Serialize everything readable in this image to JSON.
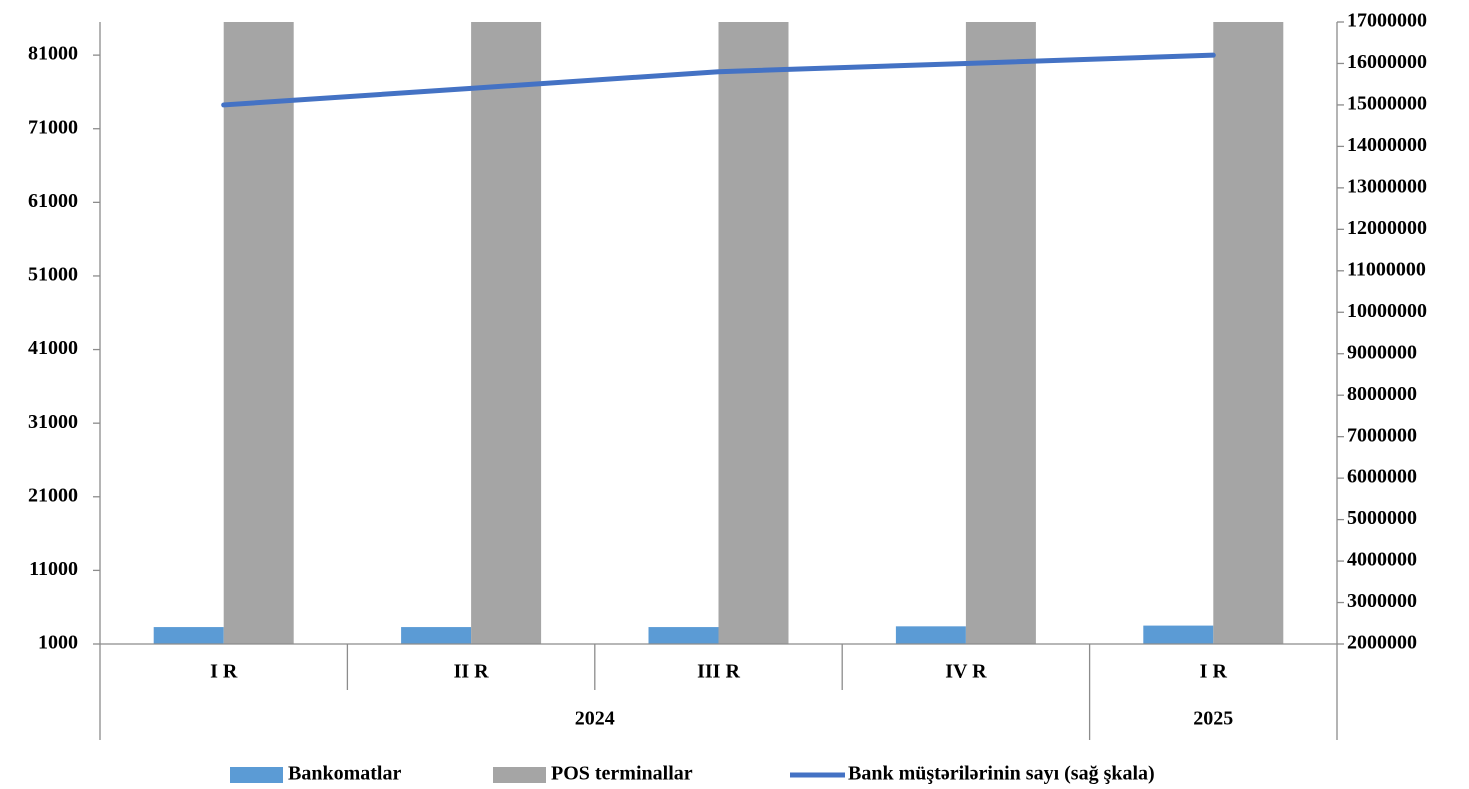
{
  "chart_data": {
    "type": "bar_line",
    "categories": [
      "I R",
      "II R",
      "III R",
      "IV R",
      "I R"
    ],
    "category_groups": [
      {
        "name": "2024",
        "count": 4
      },
      {
        "name": "2025",
        "count": 1
      }
    ],
    "series": [
      {
        "name": "Bankomatlar",
        "type": "bar",
        "color": "#5b9bd5",
        "values": [
          3300,
          3300,
          3300,
          3400,
          3500
        ]
      },
      {
        "name": "POS terminallar",
        "type": "bar",
        "color": "#a5a5a5",
        "values": [
          85500,
          85500,
          85500,
          85500,
          85500
        ]
      },
      {
        "name": "Bank müştərilərinin sayı (sağ şkala)",
        "type": "line",
        "axis": "y2",
        "color": "#4472c4",
        "values": [
          15000000,
          15400000,
          15800000,
          16000000,
          16200000
        ]
      }
    ],
    "ylim": [
      1000,
      85500
    ],
    "yticks": [
      1000,
      11000,
      21000,
      31000,
      41000,
      51000,
      61000,
      71000,
      81000
    ],
    "y2lim": [
      2000000,
      17000000
    ],
    "y2ticks": [
      2000000,
      3000000,
      4000000,
      5000000,
      6000000,
      7000000,
      8000000,
      9000000,
      10000000,
      11000000,
      12000000,
      13000000,
      14000000,
      15000000,
      16000000,
      17000000
    ],
    "legend": "bottom"
  }
}
